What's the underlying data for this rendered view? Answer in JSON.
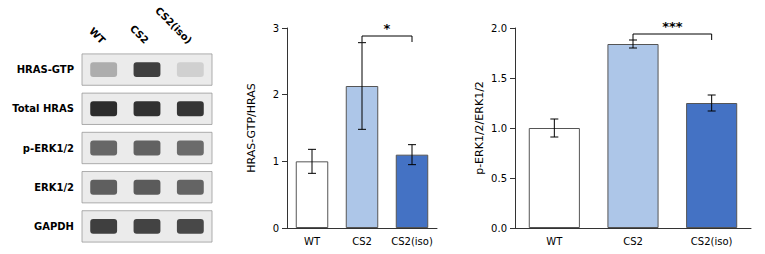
{
  "chart_data": [
    {
      "type": "heatmap",
      "categories": [
        "WT",
        "CS2",
        "CS2(iso)"
      ],
      "rows": [
        "HRAS-GTP",
        "Total HRAS",
        "p-ERK1/2",
        "ERK1/2",
        "GAPDH"
      ],
      "cells": [
        [
          0.35,
          0.82,
          0.2
        ],
        [
          0.9,
          0.88,
          0.86
        ],
        [
          0.65,
          0.67,
          0.63
        ],
        [
          0.68,
          0.7,
          0.66
        ],
        [
          0.82,
          0.8,
          0.78
        ]
      ]
    },
    {
      "type": "bar",
      "categories": [
        "WT",
        "CS2",
        "CS2(iso)"
      ],
      "values": [
        1.0,
        2.13,
        1.1
      ],
      "errors": [
        0.18,
        0.65,
        0.15
      ],
      "colors": [
        "#ffffff",
        "#adc6e8",
        "#4472c4"
      ],
      "ylabel": "HRAS-GTP/HRAS",
      "ylim": [
        0,
        3.0
      ],
      "yticks": [
        0,
        1,
        2,
        3
      ],
      "grid": false,
      "annotations": [
        {
          "text": "*",
          "x1": "CS2",
          "x2": "CS2(iso)",
          "y": 2.88
        }
      ]
    },
    {
      "type": "bar",
      "categories": [
        "WT",
        "CS2",
        "CS2(iso)"
      ],
      "values": [
        1.0,
        1.84,
        1.25
      ],
      "errors": [
        0.09,
        0.04,
        0.08
      ],
      "colors": [
        "#ffffff",
        "#adc6e8",
        "#4472c4"
      ],
      "ylabel": "p-ERK1/2/ERK1/2",
      "ylim": [
        0,
        2.0
      ],
      "yticks": [
        {
          "value": 0,
          "label": "0.0"
        },
        0.5,
        {
          "value": 1,
          "label": "1.0"
        },
        1.5,
        {
          "value": 2,
          "label": "2.0"
        }
      ],
      "grid": false,
      "annotations": [
        {
          "text": "***",
          "x1": "CS2",
          "x2": "CS2(iso)",
          "y": 1.94
        }
      ]
    }
  ]
}
